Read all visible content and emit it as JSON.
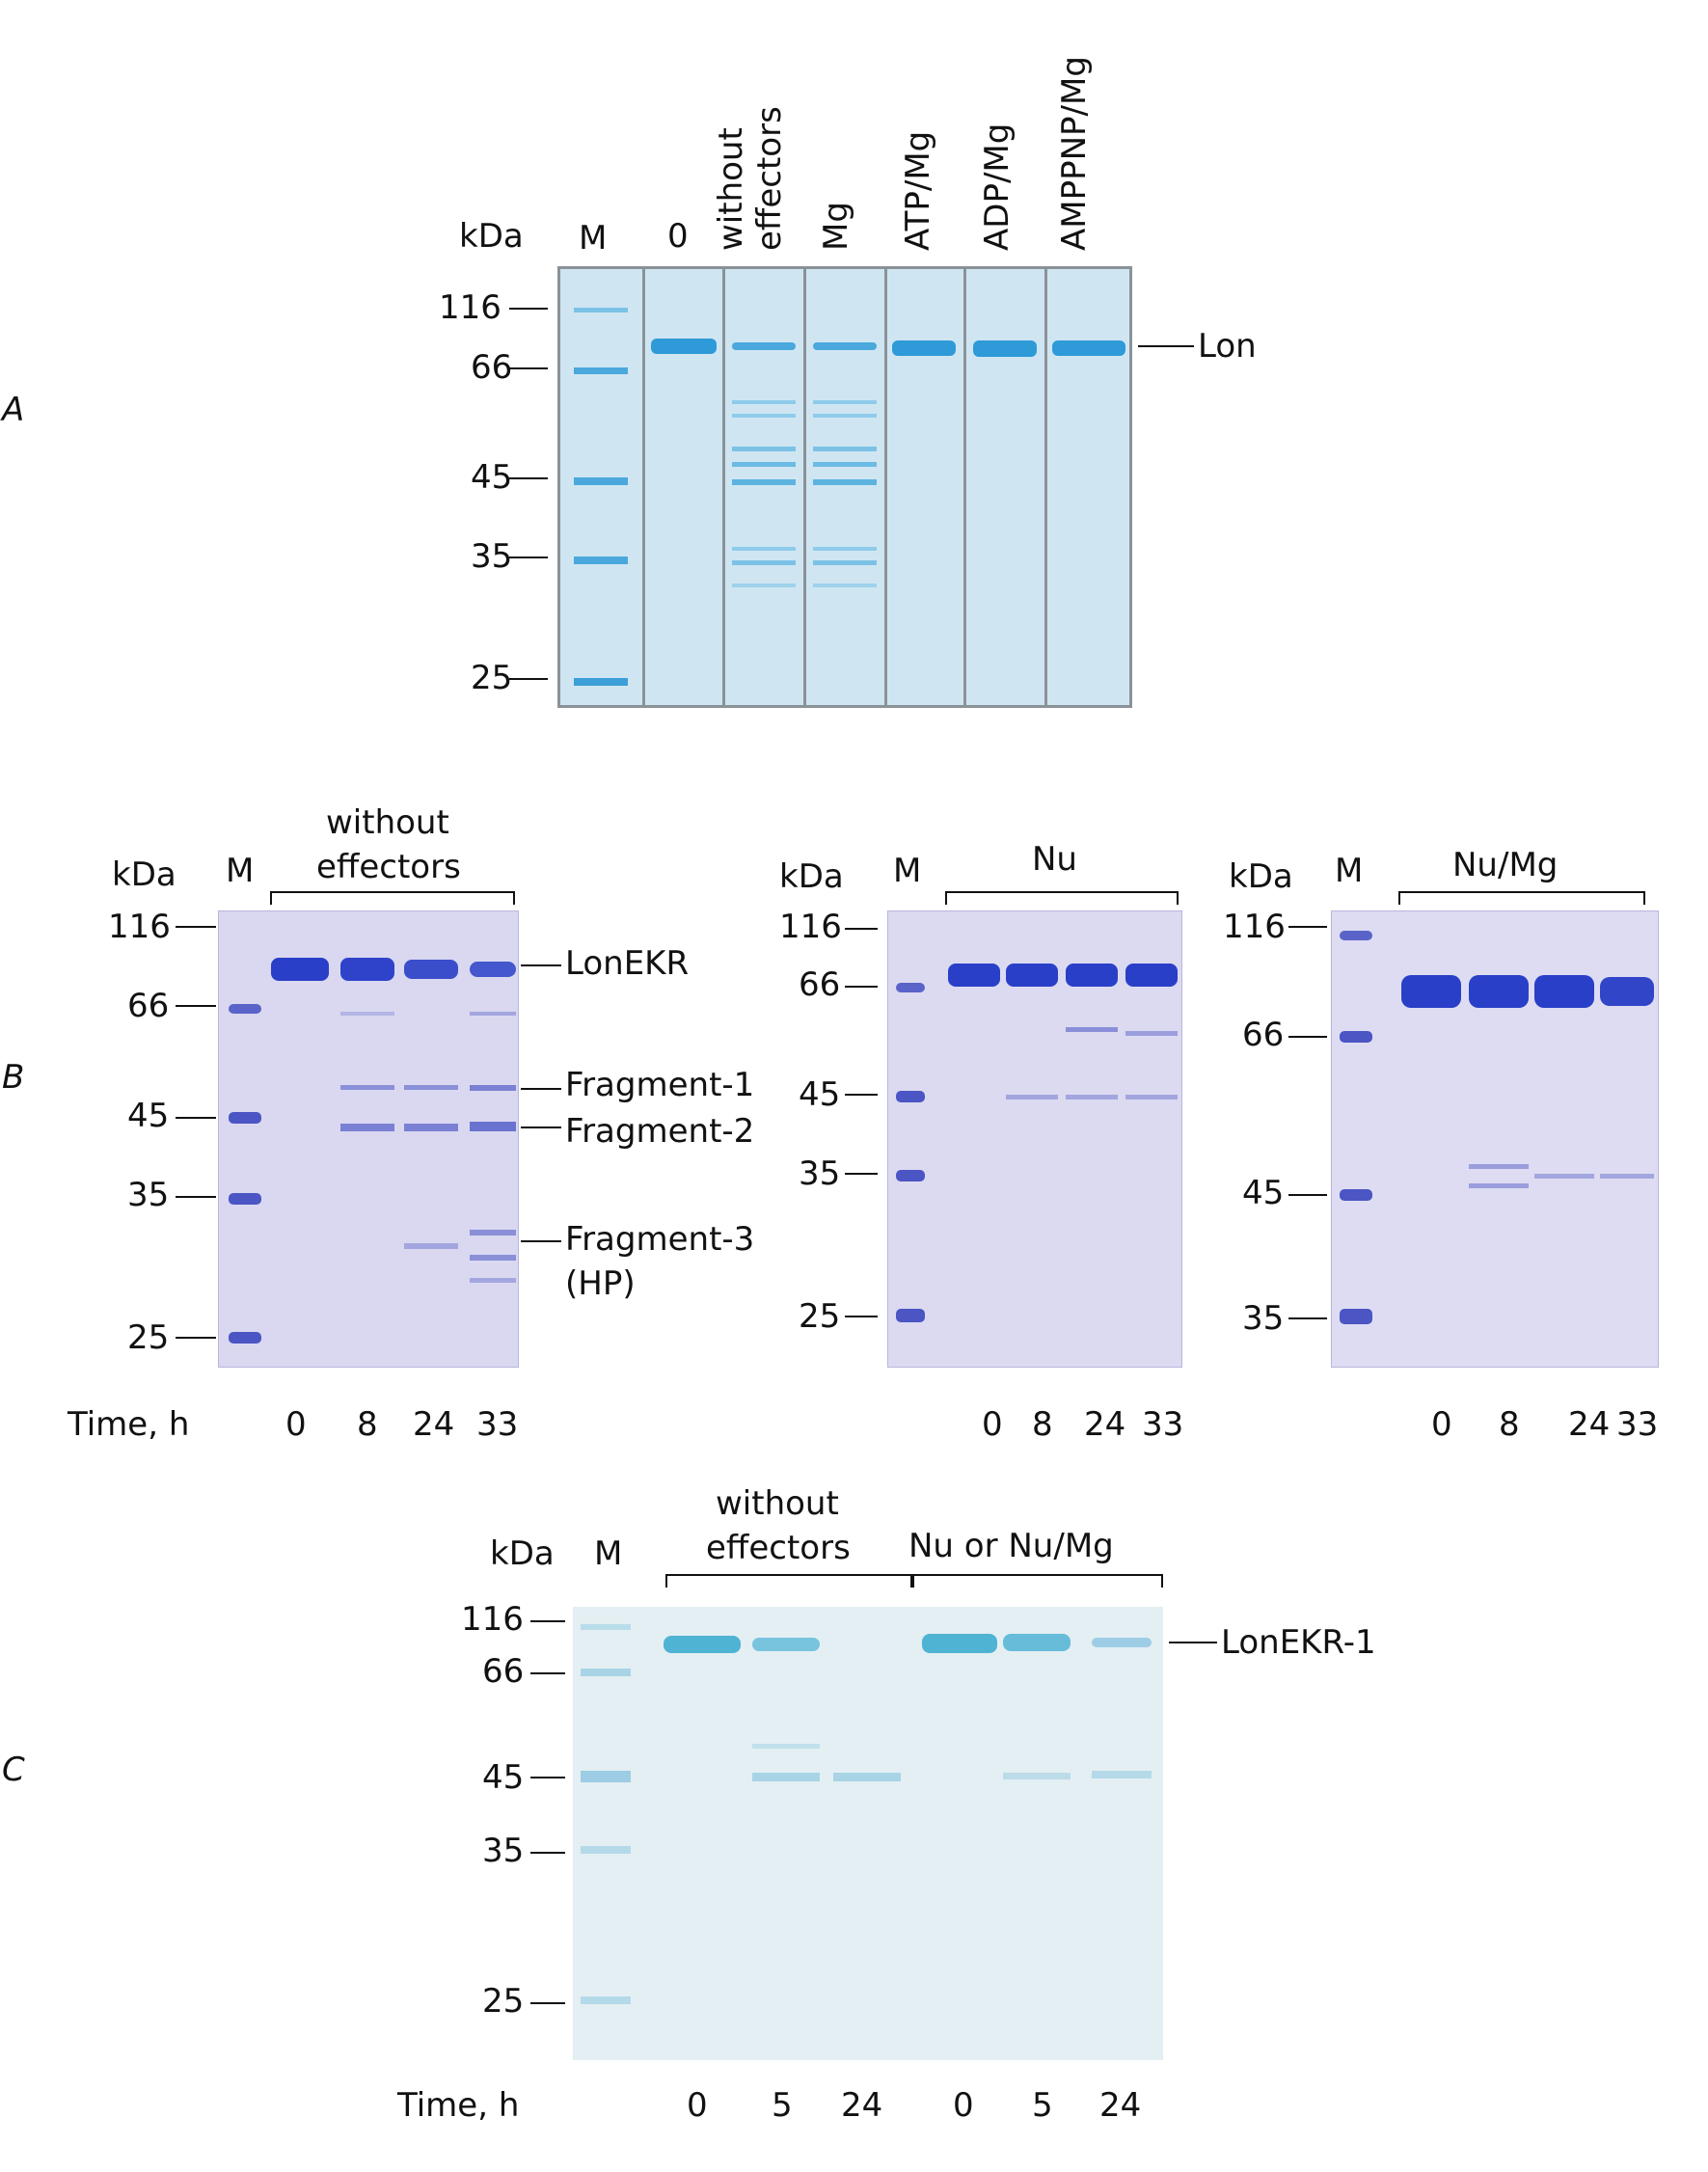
{
  "panels": {
    "A": {
      "letter": "A",
      "kda_label": "kDa",
      "marker_lane": "M",
      "lanes": [
        "0",
        "without\neffectors",
        "Mg",
        "ATP/Mg",
        "ADP/Mg",
        "AMPPNP/Mg"
      ],
      "lane_line1": [
        "0",
        "without",
        "Mg",
        "ATP/Mg",
        "ADP/Mg",
        "AMPPNP/Mg"
      ],
      "lane_line2": [
        "",
        "effectors",
        "",
        "",
        "",
        ""
      ],
      "mw_markers": [
        "116",
        "66",
        "45",
        "35",
        "25"
      ],
      "band_label": "Lon"
    },
    "B": {
      "letter": "B",
      "gels": [
        {
          "kda_label": "kDa",
          "marker_lane": "M",
          "condition_line1": "without",
          "condition_line2": "effectors",
          "mw_markers": [
            "116",
            "66",
            "45",
            "35",
            "25"
          ],
          "time_label": "Time, h",
          "times": [
            "0",
            "8",
            "24",
            "33"
          ],
          "band_labels": [
            "LonEKR",
            "Fragment-1",
            "Fragment-2",
            "Fragment-3",
            "(HP)"
          ]
        },
        {
          "kda_label": "kDa",
          "marker_lane": "M",
          "condition_line1": "Nu",
          "mw_markers": [
            "116",
            "66",
            "45",
            "35",
            "25"
          ],
          "times": [
            "0",
            "8",
            "24",
            "33"
          ]
        },
        {
          "kda_label": "kDa",
          "marker_lane": "M",
          "condition_line1": "Nu/Mg",
          "mw_markers": [
            "116",
            "66",
            "45",
            "35"
          ],
          "times": [
            "0",
            "8",
            "24",
            "33"
          ]
        }
      ]
    },
    "C": {
      "letter": "C",
      "kda_label": "kDa",
      "marker_lane": "M",
      "group1_line1": "without",
      "group1_line2": "effectors",
      "group2_label": "Nu or Nu/Mg",
      "mw_markers": [
        "116",
        "66",
        "45",
        "35",
        "25"
      ],
      "time_label": "Time, h",
      "times": [
        "0",
        "5",
        "24",
        "0",
        "5",
        "24"
      ],
      "band_label": "LonEKR-1"
    }
  },
  "colors": {
    "gelA_bg": "#cfe6f2",
    "gelA_band": "#2f9ad8",
    "gelB_bg": "#d9d8f0",
    "gelB_band": "#2a3fc8",
    "gelC_bg": "#e4eff3",
    "gelC_band": "#4fb3d4"
  }
}
